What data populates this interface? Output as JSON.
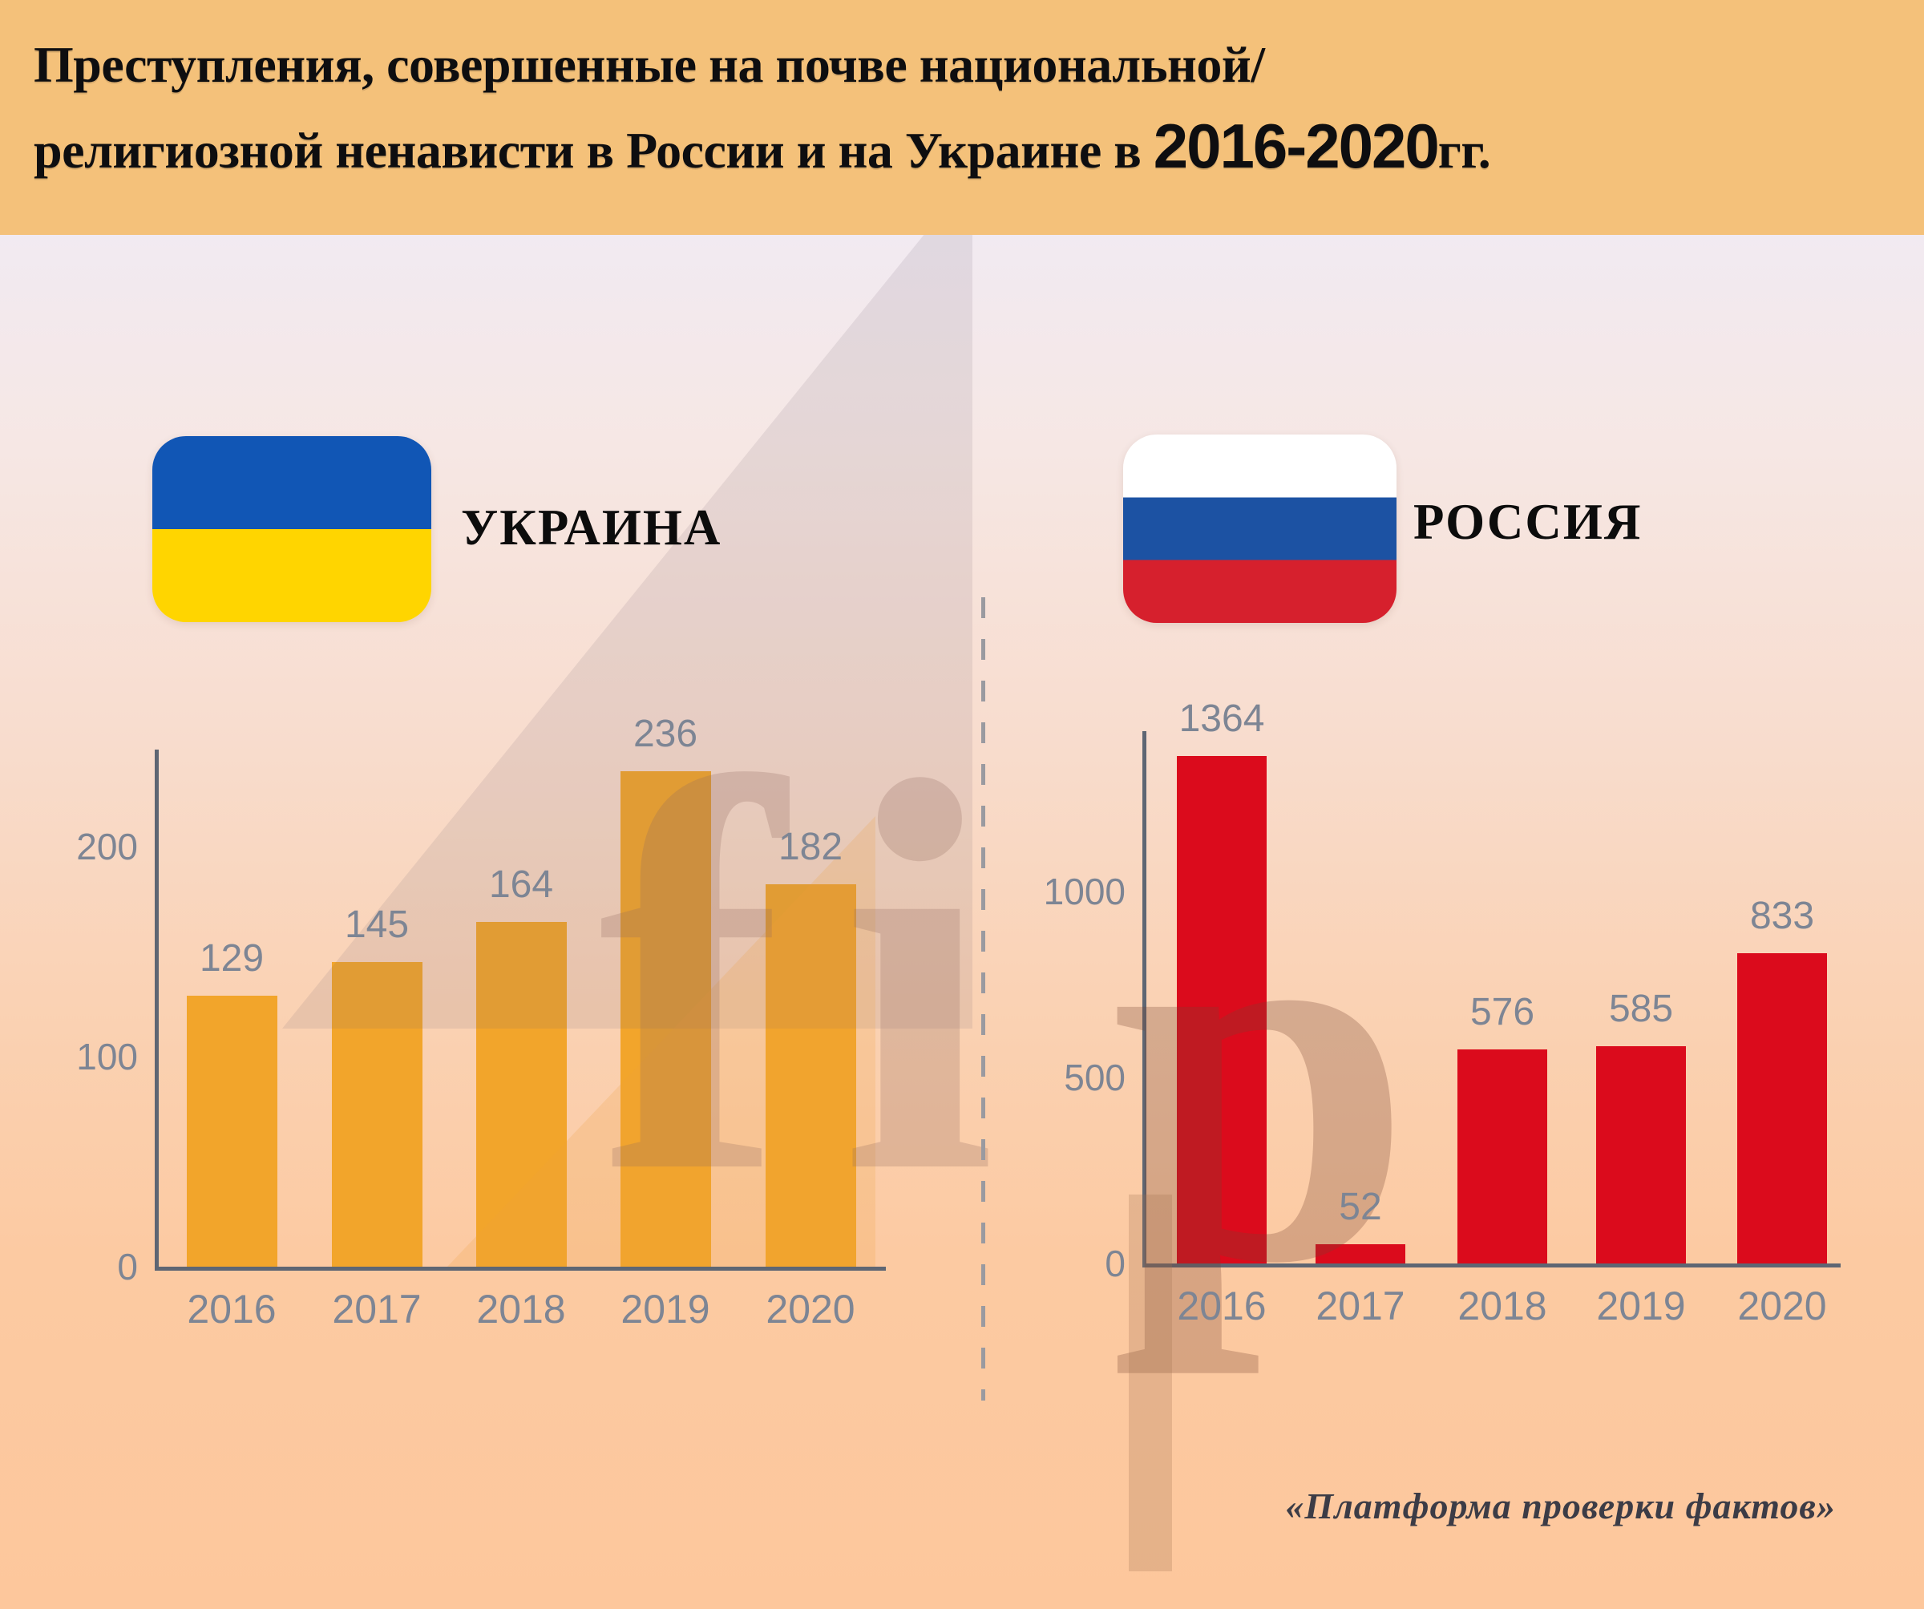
{
  "header": {
    "title_line1": "Преступления, совершенные на почве национальной/",
    "title_line2_prefix": "религиозной ненависти в России и на Украине в ",
    "title_years": "2016-2020",
    "title_suffix": "гг."
  },
  "legend": {
    "ukraine_label": "УКРАИНА",
    "russia_label": "РОССИЯ"
  },
  "footer": {
    "source": "«Платформа проверки фактов»"
  },
  "colors": {
    "banner": "#F4C17A",
    "ukraine_bar": "#F2A52B",
    "russia_bar": "#DB0B1C",
    "label_gray": "#7D8594",
    "axis": "#5E6673",
    "ukraine_flag_blue": "#1156B5",
    "ukraine_flag_yellow": "#FFD500",
    "russia_flag_white": "#FFFFFF",
    "russia_flag_blue": "#1C52A3",
    "russia_flag_red": "#D6202D"
  },
  "watermark": {
    "letters": "fip"
  },
  "chart_data": [
    {
      "type": "bar",
      "title": "УКРАИНА",
      "categories": [
        "2016",
        "2017",
        "2018",
        "2019",
        "2020"
      ],
      "values": [
        129,
        145,
        164,
        236,
        182
      ],
      "yticks": [
        0,
        100,
        200
      ],
      "ylim": [
        0,
        248
      ],
      "bar_color": "#F2A52B",
      "grid": false,
      "legend_position": "none",
      "value_labels": true
    },
    {
      "type": "bar",
      "title": "РОССИЯ",
      "categories": [
        "2016",
        "2017",
        "2018",
        "2019",
        "2020"
      ],
      "values": [
        1364,
        52,
        576,
        585,
        833
      ],
      "yticks": [
        0,
        500,
        1000
      ],
      "ylim": [
        0,
        1430
      ],
      "bar_color": "#DB0B1C",
      "grid": false,
      "legend_position": "none",
      "value_labels": true
    }
  ]
}
